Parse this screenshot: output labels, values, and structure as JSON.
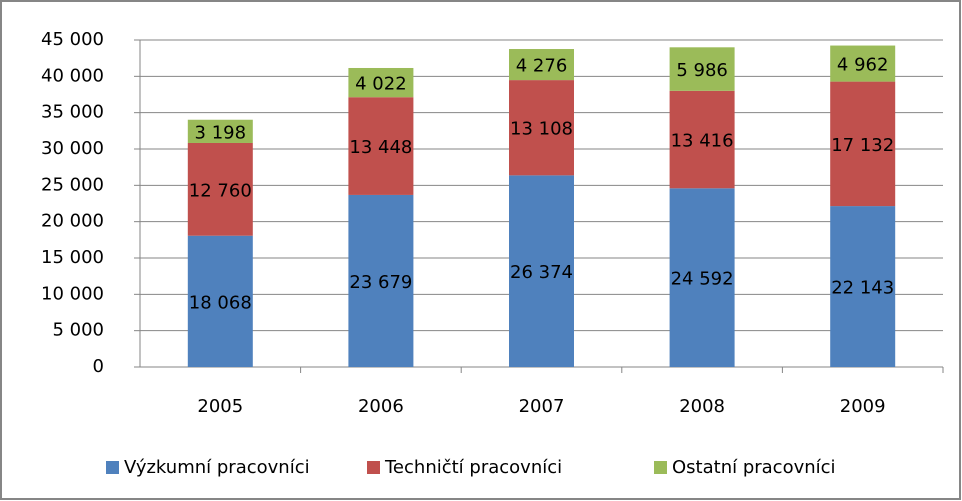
{
  "chart_data": {
    "type": "stacked_bar",
    "categories": [
      "2005",
      "2006",
      "2007",
      "2008",
      "2009"
    ],
    "series": [
      {
        "name": "Výzkumní pracovníci",
        "color": "#4f81bd",
        "values": [
          18068,
          23679,
          26374,
          24592,
          22143
        ],
        "value_labels": [
          "18 068",
          "23 679",
          "26 374",
          "24 592",
          "22 143"
        ]
      },
      {
        "name": "Techničtí pracovníci",
        "color": "#c0504d",
        "values": [
          12760,
          13448,
          13108,
          13416,
          17132
        ],
        "value_labels": [
          "12 760",
          "13 448",
          "13 108",
          "13 416",
          "17 132"
        ]
      },
      {
        "name": "Ostatní pracovníci",
        "color": "#9bbb59",
        "values": [
          3198,
          4022,
          4276,
          5986,
          4962
        ],
        "value_labels": [
          "3 198",
          "4 022",
          "4 276",
          "5 986",
          "4 962"
        ]
      }
    ],
    "ylim": [
      0,
      45000
    ],
    "yticks": [
      0,
      {
        "value": 5000,
        "label": "5 000"
      },
      {
        "value": 10000,
        "label": "10 000"
      },
      {
        "value": 15000,
        "label": "15 000"
      },
      {
        "value": 20000,
        "label": "20 000"
      },
      {
        "value": 25000,
        "label": "25 000"
      },
      {
        "value": 30000,
        "label": "30 000"
      },
      {
        "value": 35000,
        "label": "35 000"
      },
      {
        "value": 40000,
        "label": "40 000"
      },
      {
        "value": 45000,
        "label": "45 000"
      }
    ],
    "grid": true,
    "legend": "bottom"
  }
}
